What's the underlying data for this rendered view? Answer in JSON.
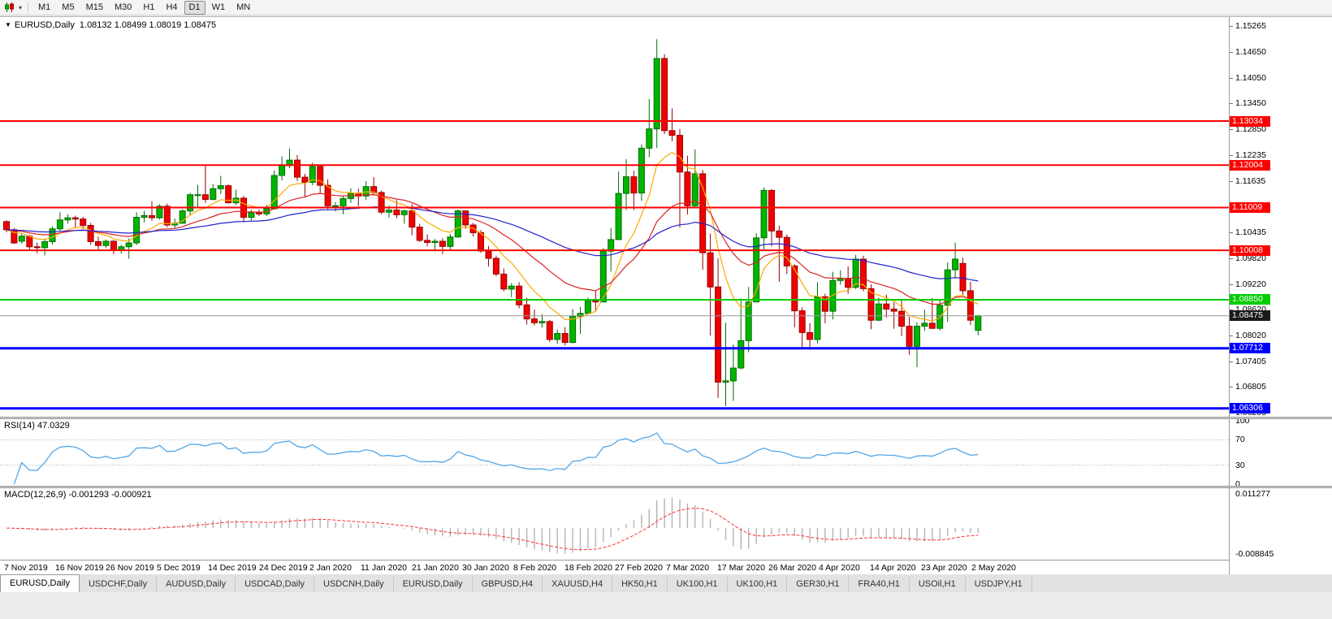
{
  "icons": {
    "collapse_triangle": "▼",
    "dropdown_caret": "▾"
  },
  "toolbar": {
    "timeframes": [
      "M1",
      "M5",
      "M15",
      "M30",
      "H1",
      "H4",
      "D1",
      "W1",
      "MN"
    ],
    "active_timeframe": "D1"
  },
  "chart": {
    "symbol_period": "EURUSD,Daily",
    "ohlc_text": "1.08132 1.08499 1.08019 1.08475"
  },
  "indicators": {
    "rsi_label": "RSI(14) 47.0329",
    "macd_label": "MACD(12,26,9) -0.001293 -0.000921"
  },
  "chart_data": {
    "type": "candlestick",
    "symbol": "EURUSD",
    "timeframe": "Daily",
    "last_bar": {
      "open": 1.08132,
      "high": 1.08499,
      "low": 1.08019,
      "close": 1.08475
    },
    "bid_price": 1.08475,
    "axis": {
      "price_min": 1.0611,
      "price_max": 1.1547,
      "y_ticks": [
        1.15265,
        1.1465,
        1.1405,
        1.1345,
        1.1285,
        1.12235,
        1.11635,
        1.10435,
        1.0982,
        1.0922,
        1.0862,
        1.0802,
        1.07405,
        1.06805,
        1.06205
      ],
      "x_labels": [
        "7 Nov 2019",
        "16 Nov 2019",
        "26 Nov 2019",
        "5 Dec 2019",
        "14 Dec 2019",
        "24 Dec 2019",
        "2 Jan 2020",
        "11 Jan 2020",
        "21 Jan 2020",
        "30 Jan 2020",
        "8 Feb 2020",
        "18 Feb 2020",
        "27 Feb 2020",
        "7 Mar 2020",
        "17 Mar 2020",
        "26 Mar 2020",
        "4 Apr 2020",
        "14 Apr 2020",
        "23 Apr 2020",
        "2 May 2020"
      ]
    },
    "colors": {
      "up": "#00b400",
      "down": "#f00000",
      "up_border": "#007000",
      "down_border": "#990000",
      "bid_line": "#999999"
    },
    "hlines": [
      {
        "price": 1.13034,
        "color": "#ff0000",
        "width": 2
      },
      {
        "price": 1.12004,
        "color": "#ff0000",
        "width": 2
      },
      {
        "price": 1.11009,
        "color": "#ff0000",
        "width": 2
      },
      {
        "price": 1.10008,
        "color": "#ff0000",
        "width": 2
      },
      {
        "price": 1.0885,
        "color": "#00cc00",
        "width": 2
      },
      {
        "price": 1.07712,
        "color": "#0000ff",
        "width": 3
      },
      {
        "price": 1.06306,
        "color": "#0000ff",
        "width": 3
      }
    ],
    "moving_averages": [
      {
        "period": 8,
        "color": "#ffaa00"
      },
      {
        "period": 21,
        "color": "#dd2222"
      },
      {
        "period": 55,
        "color": "#2222cc"
      }
    ],
    "rsi": {
      "period": 14,
      "color": "#44a0e8",
      "levels": [
        100,
        70,
        30,
        0
      ],
      "current": 47.0329
    },
    "macd": {
      "fast": 12,
      "slow": 26,
      "signal": 9,
      "histogram_color": "#b4b4b4",
      "signal_color": "#ff3333",
      "scale_max": 0.011277,
      "scale_min": -0.008845,
      "current_macd": -0.001293,
      "current_signal": -0.000921
    },
    "candles": [
      [
        1.1068,
        1.1071,
        1.1043,
        1.1049
      ],
      [
        1.1049,
        1.1053,
        1.1016,
        1.1018
      ],
      [
        1.1022,
        1.104,
        1.1016,
        1.1034
      ],
      [
        1.1034,
        1.1037,
        1.1002,
        1.1009
      ],
      [
        1.1009,
        1.1019,
        1.0994,
        1.1007
      ],
      [
        1.1007,
        1.1028,
        1.0989,
        1.1021
      ],
      [
        1.1021,
        1.1057,
        1.1014,
        1.1051
      ],
      [
        1.1051,
        1.109,
        1.1045,
        1.1072
      ],
      [
        1.1072,
        1.1085,
        1.1063,
        1.1077
      ],
      [
        1.1077,
        1.1082,
        1.1052,
        1.1074
      ],
      [
        1.1074,
        1.1079,
        1.1051,
        1.1059
      ],
      [
        1.1059,
        1.1065,
        1.1014,
        1.1021
      ],
      [
        1.1021,
        1.1033,
        1.1003,
        1.1012
      ],
      [
        1.1012,
        1.1026,
        1.1006,
        1.1022
      ],
      [
        1.1022,
        1.1025,
        1.0992,
        1.1001
      ],
      [
        1.1001,
        1.1014,
        1.0993,
        1.1009
      ],
      [
        1.1009,
        1.1028,
        1.0981,
        1.1018
      ],
      [
        1.1018,
        1.109,
        1.1013,
        1.1078
      ],
      [
        1.1078,
        1.1093,
        1.1066,
        1.1082
      ],
      [
        1.1082,
        1.1116,
        1.107,
        1.1077
      ],
      [
        1.1077,
        1.1109,
        1.1073,
        1.1104
      ],
      [
        1.1104,
        1.111,
        1.1055,
        1.106
      ],
      [
        1.106,
        1.1075,
        1.1052,
        1.1064
      ],
      [
        1.1064,
        1.1097,
        1.1063,
        1.1093
      ],
      [
        1.1093,
        1.1135,
        1.1082,
        1.1131
      ],
      [
        1.1131,
        1.1154,
        1.1102,
        1.1131
      ],
      [
        1.1131,
        1.1199,
        1.1112,
        1.112
      ],
      [
        1.112,
        1.1156,
        1.1118,
        1.1145
      ],
      [
        1.1145,
        1.1175,
        1.1133,
        1.1152
      ],
      [
        1.1152,
        1.1155,
        1.111,
        1.1112
      ],
      [
        1.1112,
        1.1143,
        1.1107,
        1.1123
      ],
      [
        1.1123,
        1.1128,
        1.1066,
        1.1078
      ],
      [
        1.1078,
        1.1096,
        1.1069,
        1.1089
      ],
      [
        1.1089,
        1.1096,
        1.1081,
        1.1086
      ],
      [
        1.1086,
        1.1107,
        1.1081,
        1.1098
      ],
      [
        1.1098,
        1.1188,
        1.1096,
        1.1176
      ],
      [
        1.1176,
        1.1221,
        1.1164,
        1.1199
      ],
      [
        1.1199,
        1.1239,
        1.1193,
        1.1212
      ],
      [
        1.1212,
        1.1224,
        1.1163,
        1.1172
      ],
      [
        1.1172,
        1.118,
        1.1125,
        1.116
      ],
      [
        1.116,
        1.1206,
        1.1153,
        1.1197
      ],
      [
        1.1197,
        1.1199,
        1.1133,
        1.1153
      ],
      [
        1.1153,
        1.1167,
        1.1097,
        1.1105
      ],
      [
        1.1105,
        1.1114,
        1.1092,
        1.1105
      ],
      [
        1.1105,
        1.1128,
        1.1085,
        1.1122
      ],
      [
        1.1122,
        1.1146,
        1.1112,
        1.1134
      ],
      [
        1.1134,
        1.1145,
        1.1104,
        1.1128
      ],
      [
        1.1128,
        1.1163,
        1.1119,
        1.115
      ],
      [
        1.115,
        1.1172,
        1.1129,
        1.1136
      ],
      [
        1.1136,
        1.1141,
        1.1085,
        1.109
      ],
      [
        1.109,
        1.1105,
        1.1077,
        1.1095
      ],
      [
        1.1095,
        1.1118,
        1.1076,
        1.1084
      ],
      [
        1.1084,
        1.1096,
        1.1063,
        1.1093
      ],
      [
        1.1093,
        1.1109,
        1.1036,
        1.1055
      ],
      [
        1.1055,
        1.1063,
        1.102,
        1.1024
      ],
      [
        1.1024,
        1.1038,
        1.101,
        1.1019
      ],
      [
        1.1019,
        1.1027,
        1.0998,
        1.1022
      ],
      [
        1.1022,
        1.1029,
        1.0992,
        1.101
      ],
      [
        1.101,
        1.1039,
        1.1003,
        1.1032
      ],
      [
        1.1032,
        1.1096,
        1.103,
        1.1093
      ],
      [
        1.1093,
        1.1094,
        1.1051,
        1.106
      ],
      [
        1.106,
        1.1065,
        1.1033,
        1.1042
      ],
      [
        1.1042,
        1.1048,
        1.0995,
        1.0999
      ],
      [
        1.0999,
        1.1011,
        1.0963,
        1.0982
      ],
      [
        1.0982,
        1.0988,
        1.094,
        1.0945
      ],
      [
        1.0945,
        1.0958,
        1.0905,
        1.091
      ],
      [
        1.091,
        1.0924,
        1.0891,
        1.0917
      ],
      [
        1.0917,
        1.0926,
        1.0865,
        1.0873
      ],
      [
        1.0873,
        1.089,
        1.0827,
        1.084
      ],
      [
        1.084,
        1.0862,
        1.0825,
        1.0831
      ],
      [
        1.0831,
        1.0851,
        1.082,
        1.0834
      ],
      [
        1.0834,
        1.0838,
        1.0786,
        1.0792
      ],
      [
        1.0792,
        1.0815,
        1.0782,
        1.0806
      ],
      [
        1.0806,
        1.0821,
        1.0778,
        1.0785
      ],
      [
        1.0785,
        1.0863,
        1.0783,
        1.0846
      ],
      [
        1.0846,
        1.0868,
        1.0805,
        1.0853
      ],
      [
        1.0853,
        1.089,
        1.0851,
        1.0882
      ],
      [
        1.0882,
        1.0908,
        1.0856,
        1.088
      ],
      [
        1.088,
        1.1006,
        1.0879,
        1.0999
      ],
      [
        1.0999,
        1.1053,
        1.0951,
        1.1026
      ],
      [
        1.1026,
        1.1185,
        1.1025,
        1.1134
      ],
      [
        1.1134,
        1.1214,
        1.1095,
        1.1173
      ],
      [
        1.1173,
        1.1187,
        1.1095,
        1.1135
      ],
      [
        1.1135,
        1.1249,
        1.1117,
        1.124
      ],
      [
        1.124,
        1.1355,
        1.1219,
        1.1285
      ],
      [
        1.1285,
        1.1495,
        1.124,
        1.145
      ],
      [
        1.145,
        1.146,
        1.1273,
        1.1281
      ],
      [
        1.1281,
        1.1333,
        1.1256,
        1.127
      ],
      [
        1.127,
        1.1285,
        1.1054,
        1.1184
      ],
      [
        1.1184,
        1.1222,
        1.1085,
        1.1105
      ],
      [
        1.1105,
        1.1237,
        1.11,
        1.118
      ],
      [
        1.118,
        1.1189,
        1.0955,
        1.0995
      ],
      [
        1.0995,
        1.104,
        1.0801,
        1.0915
      ],
      [
        1.0915,
        1.0982,
        1.0655,
        1.0692
      ],
      [
        1.0692,
        1.0831,
        1.0636,
        1.0695
      ],
      [
        1.0695,
        1.078,
        1.0648,
        1.0725
      ],
      [
        1.0725,
        1.0888,
        1.0722,
        1.0789
      ],
      [
        1.0789,
        1.0915,
        1.0762,
        1.088
      ],
      [
        1.088,
        1.1041,
        1.0879,
        1.103
      ],
      [
        1.103,
        1.1148,
        1.1003,
        1.1141
      ],
      [
        1.1141,
        1.1144,
        1.101,
        1.1046
      ],
      [
        1.1046,
        1.1058,
        1.0927,
        1.1031
      ],
      [
        1.1031,
        1.1038,
        1.0945,
        1.0964
      ],
      [
        1.0964,
        1.0968,
        1.082,
        1.0859
      ],
      [
        1.0859,
        1.0867,
        1.0773,
        1.0808
      ],
      [
        1.0808,
        1.083,
        1.0768,
        1.0792
      ],
      [
        1.0792,
        1.0926,
        1.0783,
        1.0892
      ],
      [
        1.0892,
        1.0899,
        1.083,
        1.0858
      ],
      [
        1.0858,
        1.095,
        1.0839,
        1.093
      ],
      [
        1.093,
        1.0954,
        1.092,
        1.0935
      ],
      [
        1.0935,
        1.0963,
        1.0899,
        1.0914
      ],
      [
        1.0914,
        1.099,
        1.091,
        1.098
      ],
      [
        1.098,
        1.0988,
        1.0905,
        1.0911
      ],
      [
        1.0911,
        1.0921,
        1.0816,
        1.0837
      ],
      [
        1.0837,
        1.089,
        1.0835,
        1.0875
      ],
      [
        1.0875,
        1.0897,
        1.0843,
        1.0863
      ],
      [
        1.0863,
        1.0879,
        1.0817,
        1.0858
      ],
      [
        1.0858,
        1.0885,
        1.08,
        1.0823
      ],
      [
        1.0823,
        1.0845,
        1.0756,
        1.0776
      ],
      [
        1.0776,
        1.0832,
        1.0727,
        1.0823
      ],
      [
        1.0823,
        1.0862,
        1.0812,
        1.083
      ],
      [
        1.083,
        1.0889,
        1.0816,
        1.0818
      ],
      [
        1.0818,
        1.0885,
        1.0813,
        1.0872
      ],
      [
        1.0872,
        1.0972,
        1.0833,
        1.0955
      ],
      [
        1.0955,
        1.1019,
        1.0935,
        1.098
      ],
      [
        1.097,
        1.0983,
        1.0896,
        1.0906
      ],
      [
        1.0906,
        1.0927,
        1.0826,
        1.0837
      ],
      [
        1.08132,
        1.08499,
        1.08019,
        1.08475
      ]
    ]
  },
  "tabs": {
    "items": [
      "EURUSD,Daily",
      "USDCHF,Daily",
      "AUDUSD,Daily",
      "USDCAD,Daily",
      "USDCNH,Daily",
      "EURUSD,Daily",
      "GBPUSD,H4",
      "XAUUSD,H4",
      "HK50,H1",
      "UK100,H1",
      "UK100,H1",
      "GER30,H1",
      "FRA40,H1",
      "USOil,H1",
      "USDJPY,H1"
    ],
    "active_index": 0
  }
}
